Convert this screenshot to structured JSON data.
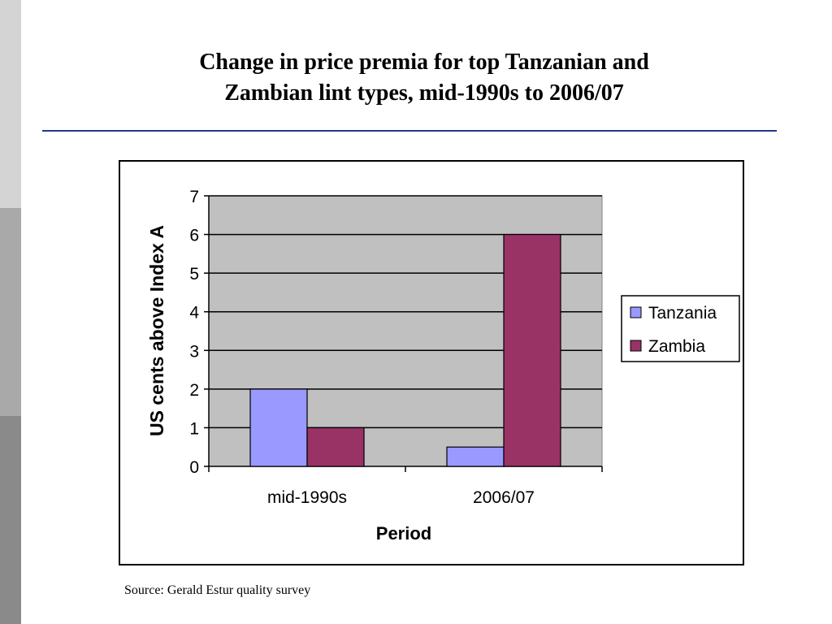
{
  "slide": {
    "title_line1": "Change in price premia for top Tanzanian and",
    "title_line2": "Zambian lint types, mid-1990s to 2006/07",
    "source": "Source: Gerald Estur quality survey",
    "rule_color": "#1f3a8a"
  },
  "chart_data": {
    "type": "bar",
    "title": "",
    "xlabel": "Period",
    "ylabel": "US cents above Index A",
    "categories": [
      "mid-1990s",
      "2006/07"
    ],
    "series": [
      {
        "name": "Tanzania",
        "values": [
          2,
          0.5
        ],
        "color": "#9999ff"
      },
      {
        "name": "Zambia",
        "values": [
          1,
          6
        ],
        "color": "#993366"
      }
    ],
    "ylim": [
      0,
      7
    ],
    "yticks": [
      "0",
      "1",
      "2",
      "3",
      "4",
      "5",
      "6",
      "7"
    ],
    "grid": true,
    "plot_background": "#c0c0c0",
    "legend_position": "right"
  }
}
